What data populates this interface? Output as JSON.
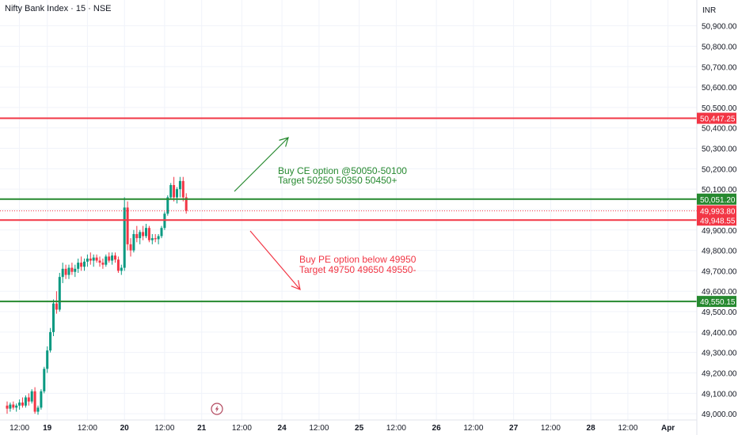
{
  "header": {
    "title": "Nifty Bank Index · 15 · NSE",
    "currency": "INR"
  },
  "colors": {
    "red": "#f23645",
    "green": "#26892f",
    "up": "#089981",
    "down": "#f23645",
    "grid": "#f0f3fa",
    "text": "#131722"
  },
  "event_marker_icon": "lightning-icon",
  "annotations": {
    "ce_line1": "Buy CE option @50050-50100",
    "ce_line2": "Target 50250 50350 50450+",
    "pe_line1": "Buy PE option below 49950",
    "pe_line2": "Target 49750 49650 49550-"
  },
  "chart_data": {
    "type": "candlestick",
    "y_range": [
      48985,
      50980
    ],
    "y_ticks": [
      {
        "value": 50900,
        "label": "50,900.00"
      },
      {
        "value": 50800,
        "label": "50,800.00"
      },
      {
        "value": 50700,
        "label": "50,700.00"
      },
      {
        "value": 50600,
        "label": "50,600.00"
      },
      {
        "value": 50500,
        "label": "50,500.00"
      },
      {
        "value": 50400,
        "label": "50,400.00"
      },
      {
        "value": 50300,
        "label": "50,300.00"
      },
      {
        "value": 50200,
        "label": "50,200.00"
      },
      {
        "value": 50100,
        "label": "50,100.00"
      },
      {
        "value": 50000,
        "label": "50,000.00"
      },
      {
        "value": 49900,
        "label": "49,900.00"
      },
      {
        "value": 49800,
        "label": "49,800.00"
      },
      {
        "value": 49700,
        "label": "49,700.00"
      },
      {
        "value": 49600,
        "label": "49,600.00"
      },
      {
        "value": 49500,
        "label": "49,500.00"
      },
      {
        "value": 49400,
        "label": "49,400.00"
      },
      {
        "value": 49300,
        "label": "49,300.00"
      },
      {
        "value": 49200,
        "label": "49,200.00"
      },
      {
        "value": 49100,
        "label": "49,100.00"
      },
      {
        "value": 49000,
        "label": "49,000.00"
      }
    ],
    "x_ticks": [
      {
        "t": 4,
        "label": "12:00"
      },
      {
        "t": 13,
        "label": "19"
      },
      {
        "t": 26,
        "label": "12:00"
      },
      {
        "t": 38,
        "label": "20"
      },
      {
        "t": 51,
        "label": "12:00"
      },
      {
        "t": 63,
        "label": "21"
      },
      {
        "t": 76,
        "label": "12:00"
      },
      {
        "t": 89,
        "label": "24"
      },
      {
        "t": 101,
        "label": "12:00"
      },
      {
        "t": 114,
        "label": "25"
      },
      {
        "t": 126,
        "label": "12:00"
      },
      {
        "t": 139,
        "label": "26"
      },
      {
        "t": 151,
        "label": "12:00"
      },
      {
        "t": 164,
        "label": "27"
      },
      {
        "t": 176,
        "label": "12:00"
      },
      {
        "t": 189,
        "label": "28"
      },
      {
        "t": 201,
        "label": "12:00"
      },
      {
        "t": 214,
        "label": "Apr"
      }
    ],
    "horizontal_levels": [
      {
        "value": 50447.25,
        "label": "50,447.25",
        "color": "red"
      },
      {
        "value": 50051.2,
        "label": "50,051.20",
        "color": "green"
      },
      {
        "value": 49948.55,
        "label": "49,948.55",
        "color": "red"
      },
      {
        "value": 49550.15,
        "label": "49,550.15",
        "color": "green"
      }
    ],
    "last_price": {
      "value": 49993.8,
      "label": "49,993.80"
    },
    "candles": [
      [
        49040,
        49060,
        49000,
        49025
      ],
      [
        49025,
        49055,
        49010,
        49045
      ],
      [
        49045,
        49060,
        49020,
        49030
      ],
      [
        49030,
        49050,
        49010,
        49040
      ],
      [
        49040,
        49070,
        49020,
        49055
      ],
      [
        49055,
        49080,
        49030,
        49040
      ],
      [
        49040,
        49090,
        49030,
        49080
      ],
      [
        49080,
        49100,
        49040,
        49060
      ],
      [
        49060,
        49120,
        49050,
        49110
      ],
      [
        49110,
        49130,
        49000,
        49010
      ],
      [
        49010,
        49040,
        48995,
        49030
      ],
      [
        49030,
        49120,
        49020,
        49110
      ],
      [
        49110,
        49230,
        49100,
        49220
      ],
      [
        49220,
        49330,
        49200,
        49310
      ],
      [
        49310,
        49420,
        49300,
        49400
      ],
      [
        49400,
        49560,
        49380,
        49540
      ],
      [
        49540,
        49600,
        49490,
        49510
      ],
      [
        49510,
        49690,
        49500,
        49670
      ],
      [
        49670,
        49740,
        49640,
        49710
      ],
      [
        49710,
        49730,
        49660,
        49680
      ],
      [
        49680,
        49730,
        49660,
        49715
      ],
      [
        49715,
        49740,
        49680,
        49695
      ],
      [
        49695,
        49730,
        49670,
        49710
      ],
      [
        49710,
        49760,
        49690,
        49740
      ],
      [
        49740,
        49770,
        49700,
        49720
      ],
      [
        49720,
        49760,
        49700,
        49745
      ],
      [
        49745,
        49780,
        49720,
        49760
      ],
      [
        49760,
        49790,
        49730,
        49750
      ],
      [
        49750,
        49780,
        49720,
        49765
      ],
      [
        49765,
        49780,
        49740,
        49750
      ],
      [
        49750,
        49770,
        49720,
        49740
      ],
      [
        49740,
        49760,
        49710,
        49730
      ],
      [
        49730,
        49780,
        49720,
        49770
      ],
      [
        49770,
        49790,
        49740,
        49750
      ],
      [
        49750,
        49790,
        49730,
        49775
      ],
      [
        49775,
        49790,
        49740,
        49755
      ],
      [
        49755,
        49770,
        49690,
        49700
      ],
      [
        49700,
        49730,
        49680,
        49715
      ],
      [
        49715,
        50060,
        49700,
        50010
      ],
      [
        50010,
        50040,
        49800,
        49830
      ],
      [
        49830,
        49860,
        49770,
        49800
      ],
      [
        49800,
        49900,
        49790,
        49880
      ],
      [
        49880,
        49920,
        49840,
        49860
      ],
      [
        49860,
        49900,
        49830,
        49890
      ],
      [
        49890,
        49920,
        49850,
        49870
      ],
      [
        49870,
        49930,
        49860,
        49910
      ],
      [
        49910,
        49920,
        49840,
        49850
      ],
      [
        49850,
        49880,
        49830,
        49860
      ],
      [
        49860,
        49880,
        49840,
        49855
      ],
      [
        49855,
        49880,
        49830,
        49870
      ],
      [
        49870,
        49920,
        49860,
        49910
      ],
      [
        49910,
        49990,
        49900,
        49980
      ],
      [
        49980,
        50070,
        49970,
        50060
      ],
      [
        50060,
        50130,
        50050,
        50120
      ],
      [
        50120,
        50160,
        50040,
        50060
      ],
      [
        50060,
        50110,
        50030,
        50100
      ],
      [
        50100,
        50160,
        50060,
        50140
      ],
      [
        50140,
        50160,
        50040,
        50060
      ],
      [
        50060,
        50080,
        49980,
        49994
      ]
    ]
  }
}
